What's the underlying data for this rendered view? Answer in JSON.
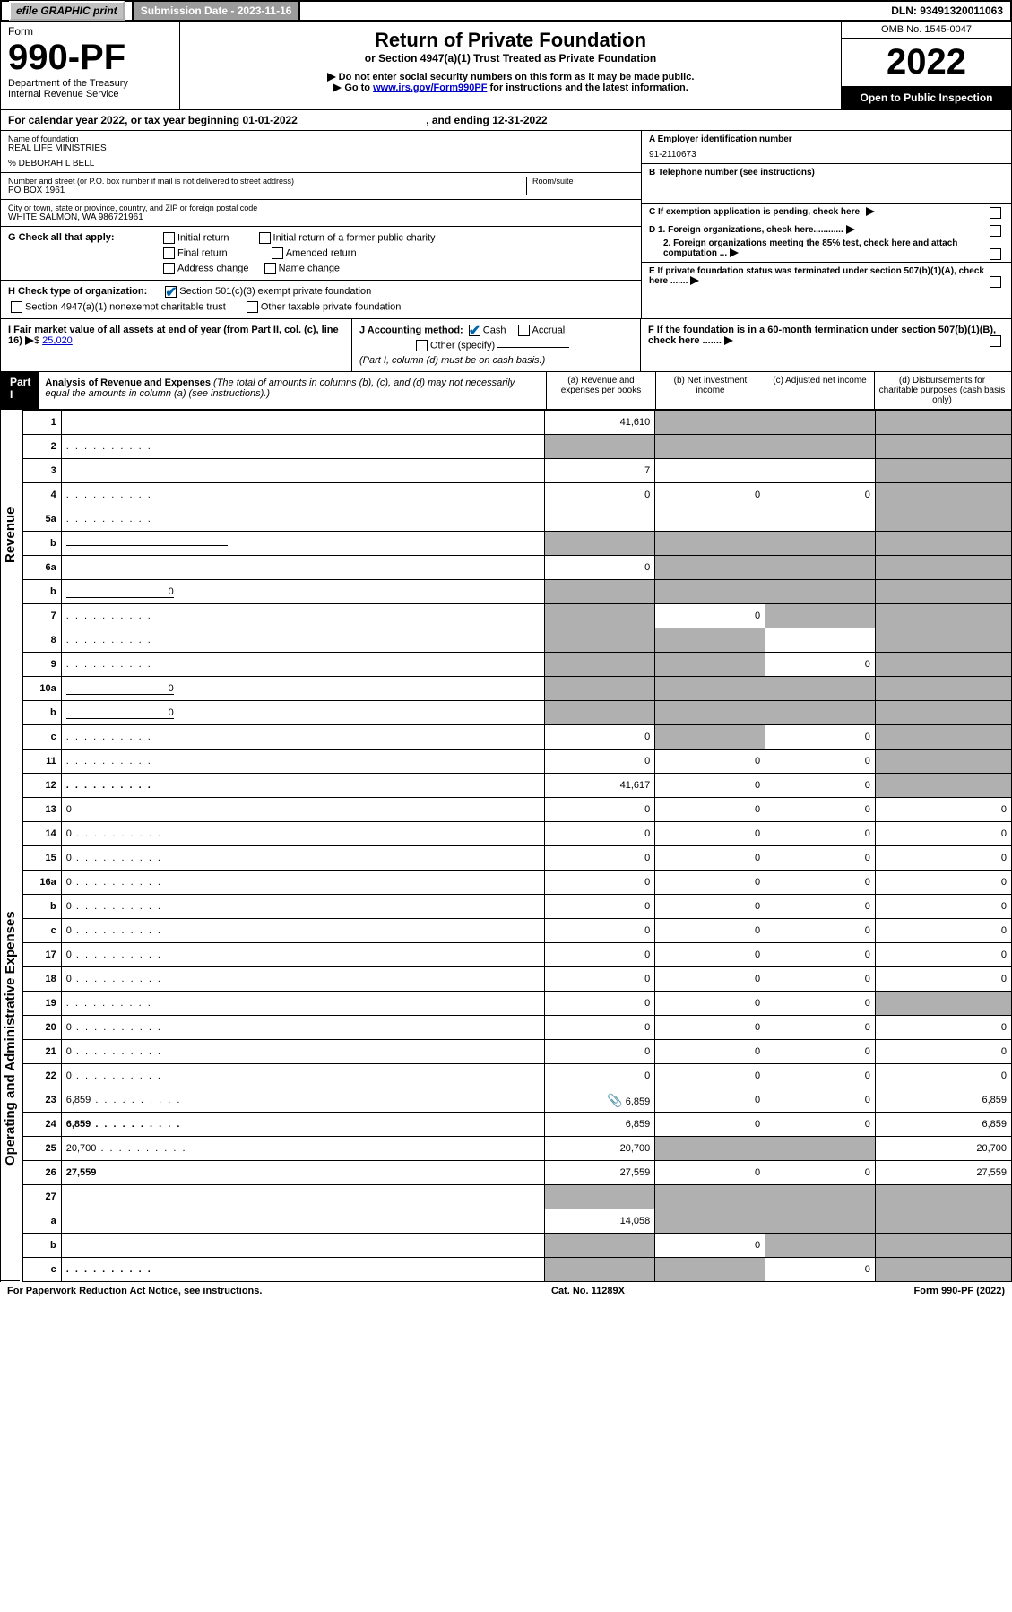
{
  "top_bar": {
    "efile": "efile GRAPHIC print",
    "submission_label": "Submission Date - 2023-11-16",
    "dln": "DLN: 93491320011063"
  },
  "header": {
    "form_label": "Form",
    "form_number": "990-PF",
    "dept": "Department of the Treasury",
    "irs": "Internal Revenue Service",
    "title": "Return of Private Foundation",
    "subtitle": "or Section 4947(a)(1) Trust Treated as Private Foundation",
    "note1": "Do not enter social security numbers on this form as it may be made public.",
    "note2_pre": "Go to ",
    "note2_link": "www.irs.gov/Form990PF",
    "note2_post": " for instructions and the latest information.",
    "omb": "OMB No. 1545-0047",
    "year": "2022",
    "open": "Open to Public Inspection"
  },
  "calendar": {
    "pre": "For calendar year 2022, or tax year beginning ",
    "begin": "01-01-2022",
    "mid": " , and ending ",
    "end": "12-31-2022"
  },
  "entity": {
    "name_label": "Name of foundation",
    "name": "REAL LIFE MINISTRIES",
    "co": "% DEBORAH L BELL",
    "addr_label": "Number and street (or P.O. box number if mail is not delivered to street address)",
    "addr": "PO BOX 1961",
    "room_label": "Room/suite",
    "city_label": "City or town, state or province, country, and ZIP or foreign postal code",
    "city": "WHITE SALMON, WA  986721961",
    "ein_label": "A Employer identification number",
    "ein": "91-2110673",
    "phone_label": "B Telephone number (see instructions)",
    "c_label": "C If exemption application is pending, check here",
    "d1": "D 1. Foreign organizations, check here............",
    "d2": "2. Foreign organizations meeting the 85% test, check here and attach computation ...",
    "e_label": "E  If private foundation status was terminated under section 507(b)(1)(A), check here .......",
    "f_label": "F  If the foundation is in a 60-month termination under section 507(b)(1)(B), check here ......."
  },
  "g": {
    "label": "G Check all that apply:",
    "o1": "Initial return",
    "o2": "Initial return of a former public charity",
    "o3": "Final return",
    "o4": "Amended return",
    "o5": "Address change",
    "o6": "Name change"
  },
  "h": {
    "label": "H Check type of organization:",
    "o1": "Section 501(c)(3) exempt private foundation",
    "o2": "Section 4947(a)(1) nonexempt charitable trust",
    "o3": "Other taxable private foundation"
  },
  "i": {
    "label": "I Fair market value of all assets at end of year (from Part II, col. (c), line 16)",
    "amount": "25,020"
  },
  "j": {
    "label": "J Accounting method:",
    "o1": "Cash",
    "o2": "Accrual",
    "o3": "Other (specify)",
    "note": "(Part I, column (d) must be on cash basis.)"
  },
  "part1": {
    "label": "Part I",
    "title": "Analysis of Revenue and Expenses",
    "paren": "(The total of amounts in columns (b), (c), and (d) may not necessarily equal the amounts in column (a) (see instructions).)",
    "col_a": "(a)   Revenue and expenses per books",
    "col_b": "(b)   Net investment income",
    "col_c": "(c)   Adjusted net income",
    "col_d": "(d)   Disbursements for charitable purposes (cash basis only)"
  },
  "side": {
    "rev": "Revenue",
    "exp": "Operating and Administrative Expenses"
  },
  "rows": [
    {
      "n": "1",
      "d": "",
      "a": "41,610",
      "b": "",
      "c": "",
      "sb": true,
      "sc": true,
      "sd": true
    },
    {
      "n": "2",
      "d": "",
      "a": "",
      "b": "",
      "c": "",
      "sa": true,
      "sb": true,
      "sc": true,
      "sd": true,
      "dots": true
    },
    {
      "n": "3",
      "d": "",
      "a": "7",
      "b": "",
      "c": "",
      "sd": true
    },
    {
      "n": "4",
      "d": "",
      "a": "0",
      "b": "0",
      "c": "0",
      "sd": true,
      "dots": true
    },
    {
      "n": "5a",
      "d": "",
      "a": "",
      "b": "",
      "c": "",
      "sd": true,
      "dots": true
    },
    {
      "n": "b",
      "d": "",
      "a": "",
      "b": "",
      "c": "",
      "sa": true,
      "sb": true,
      "sc": true,
      "sd": true,
      "inline_under": true
    },
    {
      "n": "6a",
      "d": "",
      "a": "0",
      "b": "",
      "c": "",
      "sb": true,
      "sc": true,
      "sd": true
    },
    {
      "n": "b",
      "d": "",
      "a": "",
      "b": "",
      "c": "",
      "sa": true,
      "sb": true,
      "sc": true,
      "sd": true,
      "inline_val": "0"
    },
    {
      "n": "7",
      "d": "",
      "a": "",
      "b": "0",
      "c": "",
      "sa": true,
      "sc": true,
      "sd": true,
      "dots": true
    },
    {
      "n": "8",
      "d": "",
      "a": "",
      "b": "",
      "c": "",
      "sa": true,
      "sb": true,
      "sd": true,
      "dots": true
    },
    {
      "n": "9",
      "d": "",
      "a": "",
      "b": "",
      "c": "0",
      "sa": true,
      "sb": true,
      "sd": true,
      "dots": true
    },
    {
      "n": "10a",
      "d": "",
      "a": "",
      "b": "",
      "c": "",
      "sa": true,
      "sb": true,
      "sc": true,
      "sd": true,
      "inline_val": "0"
    },
    {
      "n": "b",
      "d": "",
      "a": "",
      "b": "",
      "c": "",
      "sa": true,
      "sb": true,
      "sc": true,
      "sd": true,
      "inline_val": "0",
      "dots": true
    },
    {
      "n": "c",
      "d": "",
      "a": "0",
      "b": "",
      "c": "0",
      "sb": true,
      "sd": true,
      "dots": true
    },
    {
      "n": "11",
      "d": "",
      "a": "0",
      "b": "0",
      "c": "0",
      "sd": true,
      "dots": true
    },
    {
      "n": "12",
      "d": "",
      "a": "41,617",
      "b": "0",
      "c": "0",
      "sd": true,
      "bold": true,
      "dots": true
    },
    {
      "n": "13",
      "d": "0",
      "a": "0",
      "b": "0",
      "c": "0"
    },
    {
      "n": "14",
      "d": "0",
      "a": "0",
      "b": "0",
      "c": "0",
      "dots": true
    },
    {
      "n": "15",
      "d": "0",
      "a": "0",
      "b": "0",
      "c": "0",
      "dots": true
    },
    {
      "n": "16a",
      "d": "0",
      "a": "0",
      "b": "0",
      "c": "0",
      "dots": true
    },
    {
      "n": "b",
      "d": "0",
      "a": "0",
      "b": "0",
      "c": "0",
      "dots": true
    },
    {
      "n": "c",
      "d": "0",
      "a": "0",
      "b": "0",
      "c": "0",
      "dots": true
    },
    {
      "n": "17",
      "d": "0",
      "a": "0",
      "b": "0",
      "c": "0",
      "dots": true
    },
    {
      "n": "18",
      "d": "0",
      "a": "0",
      "b": "0",
      "c": "0",
      "dots": true
    },
    {
      "n": "19",
      "d": "",
      "a": "0",
      "b": "0",
      "c": "0",
      "sd": true,
      "dots": true
    },
    {
      "n": "20",
      "d": "0",
      "a": "0",
      "b": "0",
      "c": "0",
      "dots": true
    },
    {
      "n": "21",
      "d": "0",
      "a": "0",
      "b": "0",
      "c": "0",
      "dots": true
    },
    {
      "n": "22",
      "d": "0",
      "a": "0",
      "b": "0",
      "c": "0",
      "dots": true
    },
    {
      "n": "23",
      "d": "6,859",
      "a": "6,859",
      "b": "0",
      "c": "0",
      "clip": true,
      "dots": true
    },
    {
      "n": "24",
      "d": "6,859",
      "a": "6,859",
      "b": "0",
      "c": "0",
      "bold": true,
      "dots": true
    },
    {
      "n": "25",
      "d": "20,700",
      "a": "20,700",
      "b": "",
      "c": "",
      "sb": true,
      "sc": true,
      "dots": true
    },
    {
      "n": "26",
      "d": "27,559",
      "a": "27,559",
      "b": "0",
      "c": "0",
      "bold": true
    },
    {
      "n": "27",
      "d": "",
      "a": "",
      "b": "",
      "c": "",
      "sa": true,
      "sb": true,
      "sc": true,
      "sd": true
    },
    {
      "n": "a",
      "d": "",
      "a": "14,058",
      "b": "",
      "c": "",
      "sb": true,
      "sc": true,
      "sd": true,
      "bold": true
    },
    {
      "n": "b",
      "d": "",
      "a": "",
      "b": "0",
      "c": "",
      "sa": true,
      "sc": true,
      "sd": true,
      "bold": true
    },
    {
      "n": "c",
      "d": "",
      "a": "",
      "b": "",
      "c": "0",
      "sa": true,
      "sb": true,
      "sd": true,
      "bold": true,
      "dots": true
    }
  ],
  "footer": {
    "left": "For Paperwork Reduction Act Notice, see instructions.",
    "mid": "Cat. No. 11289X",
    "right": "Form 990-PF (2022)"
  }
}
